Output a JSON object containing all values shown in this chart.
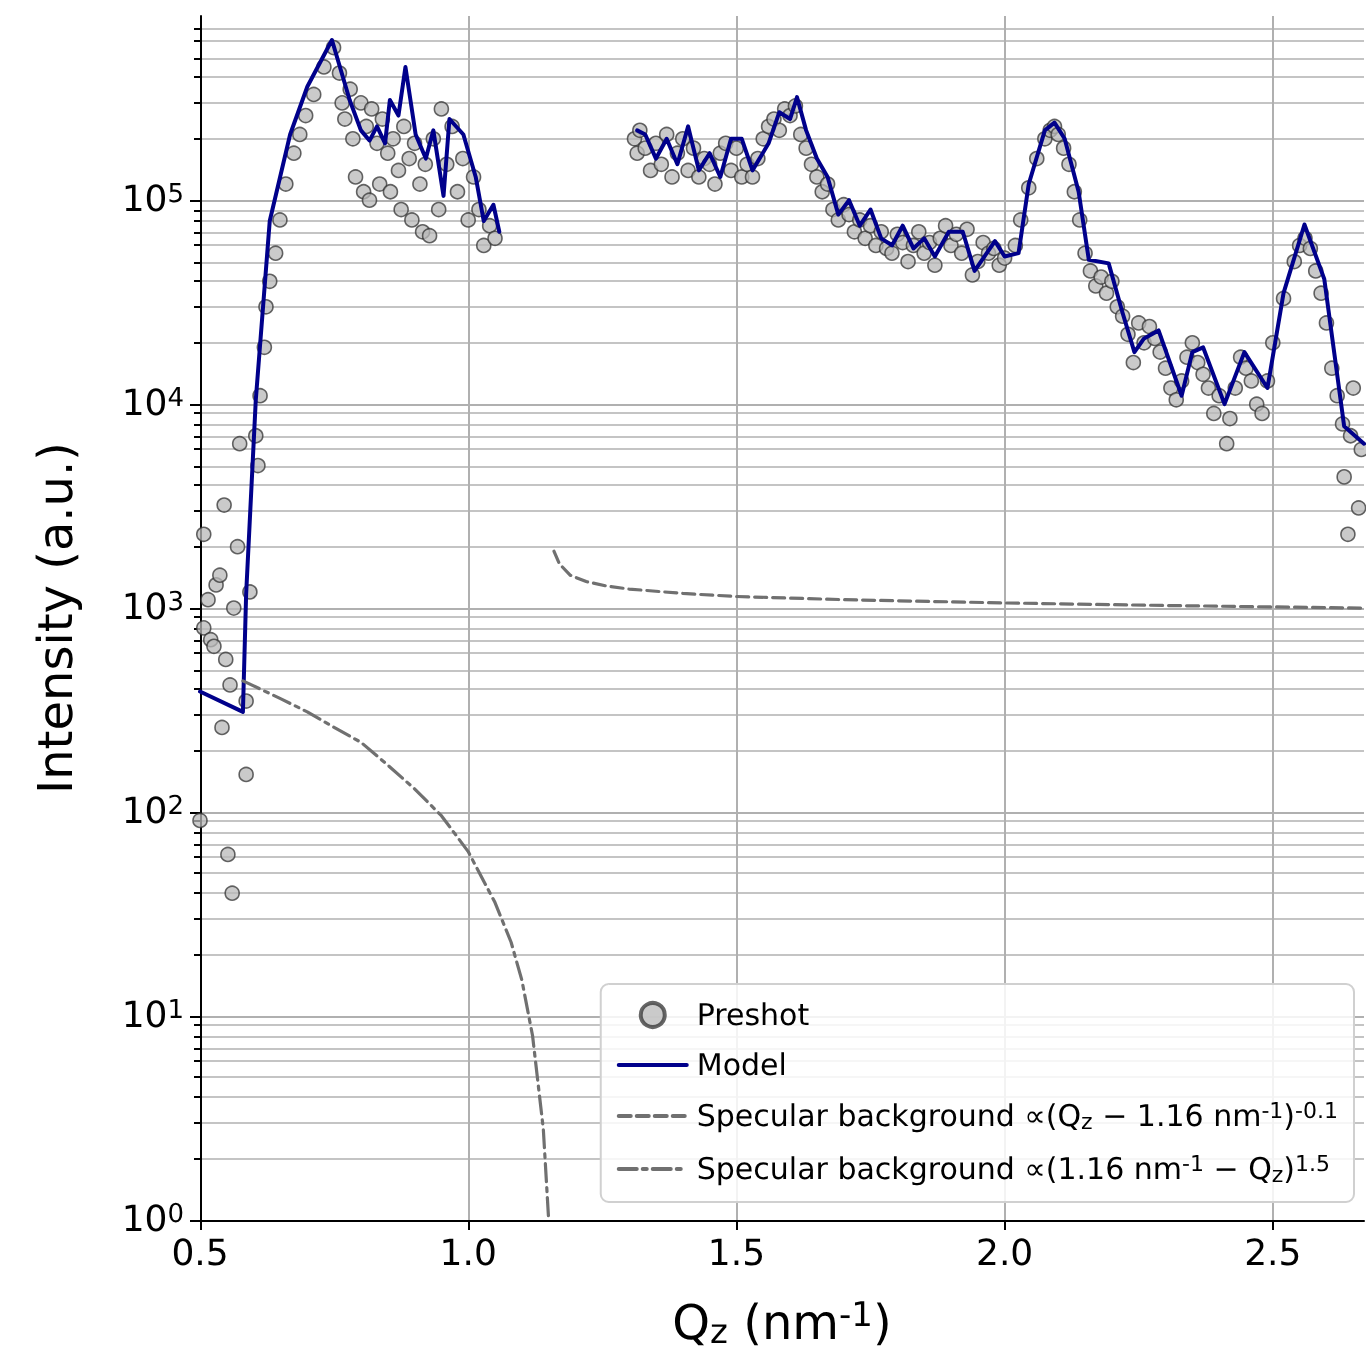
{
  "chart_data": {
    "type": "line",
    "xlabel": "Q$_{z}$ (nm$^{-1}$)",
    "ylabel": "Intensity (a.u.)",
    "xlim": [
      0.5,
      2.67
    ],
    "xticks": [
      0.5,
      {
        "value": 1,
        "label": "1.0"
      },
      1.5,
      {
        "value": 2,
        "label": "2.0"
      },
      2.5
    ],
    "ylim": [
      1,
      800000
    ],
    "yticks": [
      {
        "value": 1,
        "label": "10$^{0}$"
      },
      {
        "value": 10,
        "label": "10$^{1}$"
      },
      {
        "value": 100,
        "label": "10$^{2}$"
      },
      {
        "value": 1000,
        "label": "10$^{3}$"
      },
      {
        "value": 10000,
        "label": "10$^{4}$"
      },
      {
        "value": 100000,
        "label": "10$^{5}$"
      }
    ],
    "log": "y",
    "grid": true,
    "legend": "bottom right",
    "series": [
      {
        "name": "Preshot",
        "type": "scatter",
        "marker": "circle",
        "color": "#b8b8b8",
        "x": [
          0.5,
          0.507,
          0.507,
          0.515,
          0.52,
          0.526,
          0.53,
          0.537,
          0.541,
          0.545,
          0.548,
          0.552,
          0.556,
          0.56,
          0.563,
          0.57,
          0.574,
          0.586,
          0.586,
          0.593,
          0.604,
          0.608,
          0.612,
          0.62,
          0.623,
          0.63,
          0.641,
          0.649,
          0.66,
          0.675,
          0.686,
          0.697,
          0.712,
          0.731,
          0.749,
          0.76,
          0.765,
          0.77,
          0.78,
          0.785,
          0.79,
          0.8,
          0.805,
          0.81,
          0.816,
          0.82,
          0.83,
          0.835,
          0.84,
          0.85,
          0.855,
          0.86,
          0.87,
          0.875,
          0.88,
          0.89,
          0.895,
          0.9,
          0.91,
          0.915,
          0.92,
          0.928,
          0.935,
          0.945,
          0.95,
          0.96,
          0.97,
          0.98,
          0.99,
          1.0,
          1.01,
          1.02,
          1.029,
          1.04,
          1.05,
          1.31,
          1.315,
          1.32,
          1.33,
          1.34,
          1.35,
          1.36,
          1.37,
          1.38,
          1.39,
          1.4,
          1.41,
          1.42,
          1.43,
          1.44,
          1.45,
          1.46,
          1.47,
          1.48,
          1.49,
          1.5,
          1.51,
          1.52,
          1.53,
          1.54,
          1.55,
          1.56,
          1.57,
          1.58,
          1.59,
          1.6,
          1.61,
          1.62,
          1.63,
          1.64,
          1.65,
          1.66,
          1.67,
          1.68,
          1.69,
          1.7,
          1.71,
          1.72,
          1.73,
          1.74,
          1.75,
          1.76,
          1.77,
          1.78,
          1.79,
          1.8,
          1.81,
          1.82,
          1.83,
          1.84,
          1.85,
          1.86,
          1.87,
          1.88,
          1.89,
          1.9,
          1.91,
          1.92,
          1.93,
          1.94,
          1.95,
          1.96,
          1.97,
          1.98,
          1.99,
          2.0,
          2.02,
          2.03,
          2.045,
          2.06,
          2.075,
          2.085,
          2.093,
          2.1,
          2.11,
          2.12,
          2.13,
          2.14,
          2.15,
          2.16,
          2.17,
          2.18,
          2.19,
          2.2,
          2.21,
          2.22,
          2.23,
          2.24,
          2.25,
          2.26,
          2.27,
          2.28,
          2.29,
          2.3,
          2.31,
          2.32,
          2.33,
          2.34,
          2.35,
          2.36,
          2.37,
          2.38,
          2.39,
          2.4,
          2.414,
          2.42,
          2.43,
          2.44,
          2.45,
          2.46,
          2.47,
          2.48,
          2.49,
          2.5,
          2.52,
          2.54,
          2.55,
          2.56,
          2.57,
          2.58,
          2.59,
          2.6,
          2.61,
          2.62,
          2.633,
          2.63,
          2.64,
          2.645,
          2.65,
          2.66,
          2.665
        ],
        "values": [
          91,
          800,
          2300,
          1100,
          700,
          650,
          1300,
          1450,
          260,
          3200,
          560,
          62,
          420,
          40,
          1000,
          2000,
          6400,
          153,
          350,
          1200,
          7000,
          5000,
          11000,
          19000,
          30000,
          40000,
          55000,
          80000,
          120000,
          170000,
          210000,
          260000,
          330000,
          450000,
          560000,
          420000,
          300000,
          250000,
          350000,
          200000,
          130000,
          300000,
          110000,
          230000,
          100000,
          280000,
          190000,
          120000,
          250000,
          170000,
          110000,
          200000,
          140000,
          90000,
          230000,
          160000,
          80000,
          190000,
          120000,
          70000,
          150000,
          67000,
          200000,
          90000,
          280000,
          150000,
          230000,
          110000,
          160000,
          80000,
          130000,
          90000,
          60000,
          75000,
          65000,
          200000,
          170000,
          220000,
          180000,
          140000,
          190000,
          150000,
          210000,
          130000,
          170000,
          200000,
          140000,
          180000,
          130000,
          160000,
          150000,
          120000,
          170000,
          190000,
          140000,
          180000,
          130000,
          150000,
          130000,
          160000,
          200000,
          230000,
          250000,
          220000,
          280000,
          260000,
          290000,
          210000,
          180000,
          150000,
          130000,
          110000,
          120000,
          90000,
          80000,
          95000,
          85000,
          70000,
          80000,
          65000,
          75000,
          60000,
          70000,
          58000,
          55000,
          68000,
          62000,
          50000,
          60000,
          70000,
          55000,
          62000,
          48000,
          65000,
          75000,
          60000,
          68000,
          55000,
          72000,
          43000,
          50000,
          62000,
          55000,
          58000,
          48000,
          52000,
          60000,
          80000,
          115000,
          160000,
          200000,
          220000,
          230000,
          210000,
          180000,
          150000,
          110000,
          80000,
          55000,
          45000,
          38000,
          42000,
          35000,
          40000,
          30000,
          27000,
          22000,
          16000,
          25000,
          20000,
          24000,
          21000,
          18000,
          15000,
          12000,
          10500,
          13000,
          17000,
          20000,
          16000,
          14000,
          12000,
          9000,
          11000,
          6400,
          8500,
          12000,
          17000,
          15000,
          13000,
          10000,
          9000,
          13000,
          20000,
          33000,
          50000,
          60000,
          65000,
          58000,
          45000,
          35000,
          25000,
          15000,
          11000,
          4400,
          8000,
          2300,
          7000,
          12000,
          3100,
          6000
        ]
      },
      {
        "name": "Model",
        "color": "#00008b",
        "line_style": "solid",
        "x": [
          0.5,
          0.58,
          0.586,
          0.604,
          0.63,
          0.668,
          0.7,
          0.746,
          0.779,
          0.8,
          0.816,
          0.83,
          0.845,
          0.854,
          0.87,
          0.883,
          0.902,
          0.921,
          0.935,
          0.954,
          0.965,
          0.991,
          1.014,
          1.029,
          1.047,
          1.058,
          1.2,
          1.315,
          1.33,
          1.35,
          1.37,
          1.39,
          1.41,
          1.43,
          1.45,
          1.47,
          1.49,
          1.51,
          1.53,
          1.56,
          1.58,
          1.6,
          1.613,
          1.63,
          1.65,
          1.67,
          1.69,
          1.71,
          1.73,
          1.75,
          1.77,
          1.79,
          1.81,
          1.83,
          1.85,
          1.87,
          1.896,
          1.922,
          1.944,
          1.982,
          2.0,
          2.026,
          2.045,
          2.075,
          2.093,
          2.112,
          2.138,
          2.157,
          2.194,
          2.22,
          2.242,
          2.26,
          2.287,
          2.33,
          2.35,
          2.37,
          2.41,
          2.447,
          2.49,
          2.52,
          2.559,
          2.596,
          2.633,
          2.67
        ],
        "values": [
          390,
          310,
          1170,
          10500,
          79000,
          210000,
          360000,
          610000,
          310000,
          220000,
          196000,
          230000,
          190000,
          310000,
          260000,
          450000,
          210000,
          160000,
          220000,
          105000,
          250000,
          210000,
          130000,
          79000,
          95000,
          70000,
          null,
          220000,
          210000,
          160000,
          200000,
          150000,
          230000,
          140000,
          170000,
          130000,
          200000,
          200000,
          140000,
          190000,
          270000,
          250000,
          320000,
          220000,
          160000,
          130000,
          85000,
          100000,
          75000,
          90000,
          65000,
          60000,
          75000,
          58000,
          65000,
          53000,
          70000,
          70000,
          45000,
          63000,
          53000,
          55000,
          120000,
          220000,
          240000,
          200000,
          110000,
          51000,
          49000,
          28000,
          18000,
          21000,
          23000,
          11000,
          18000,
          19000,
          10000,
          18000,
          12000,
          35000,
          76000,
          41000,
          7800,
          6400
        ]
      },
      {
        "name": "Specular background ∝(Q$_{z}$ − 1.16 nm$^{-1}$)$^{-0.1}$",
        "color": "#707070",
        "line_style": "dashed",
        "x": [
          1.16,
          1.17,
          1.19,
          1.22,
          1.26,
          1.3,
          1.4,
          1.5,
          1.7,
          2.0,
          2.3,
          2.67
        ],
        "values": [
          1900,
          1650,
          1450,
          1350,
          1280,
          1240,
          1180,
          1140,
          1100,
          1060,
          1030,
          1000
        ]
      },
      {
        "name": "Specular background ∝(1.16 nm$^{-1}$ − Q$_{z}$)$^{1.5}$",
        "color": "#707070",
        "line_style": "dashdot",
        "x": [
          0.58,
          0.65,
          0.7,
          0.75,
          0.8,
          0.85,
          0.9,
          0.95,
          1.0,
          1.05,
          1.08,
          1.1,
          1.12,
          1.14,
          1.15
        ],
        "values": [
          440,
          360,
          310,
          260,
          220,
          170,
          130,
          96,
          64,
          36,
          23,
          15,
          8,
          2.8,
          1
        ]
      }
    ]
  }
}
